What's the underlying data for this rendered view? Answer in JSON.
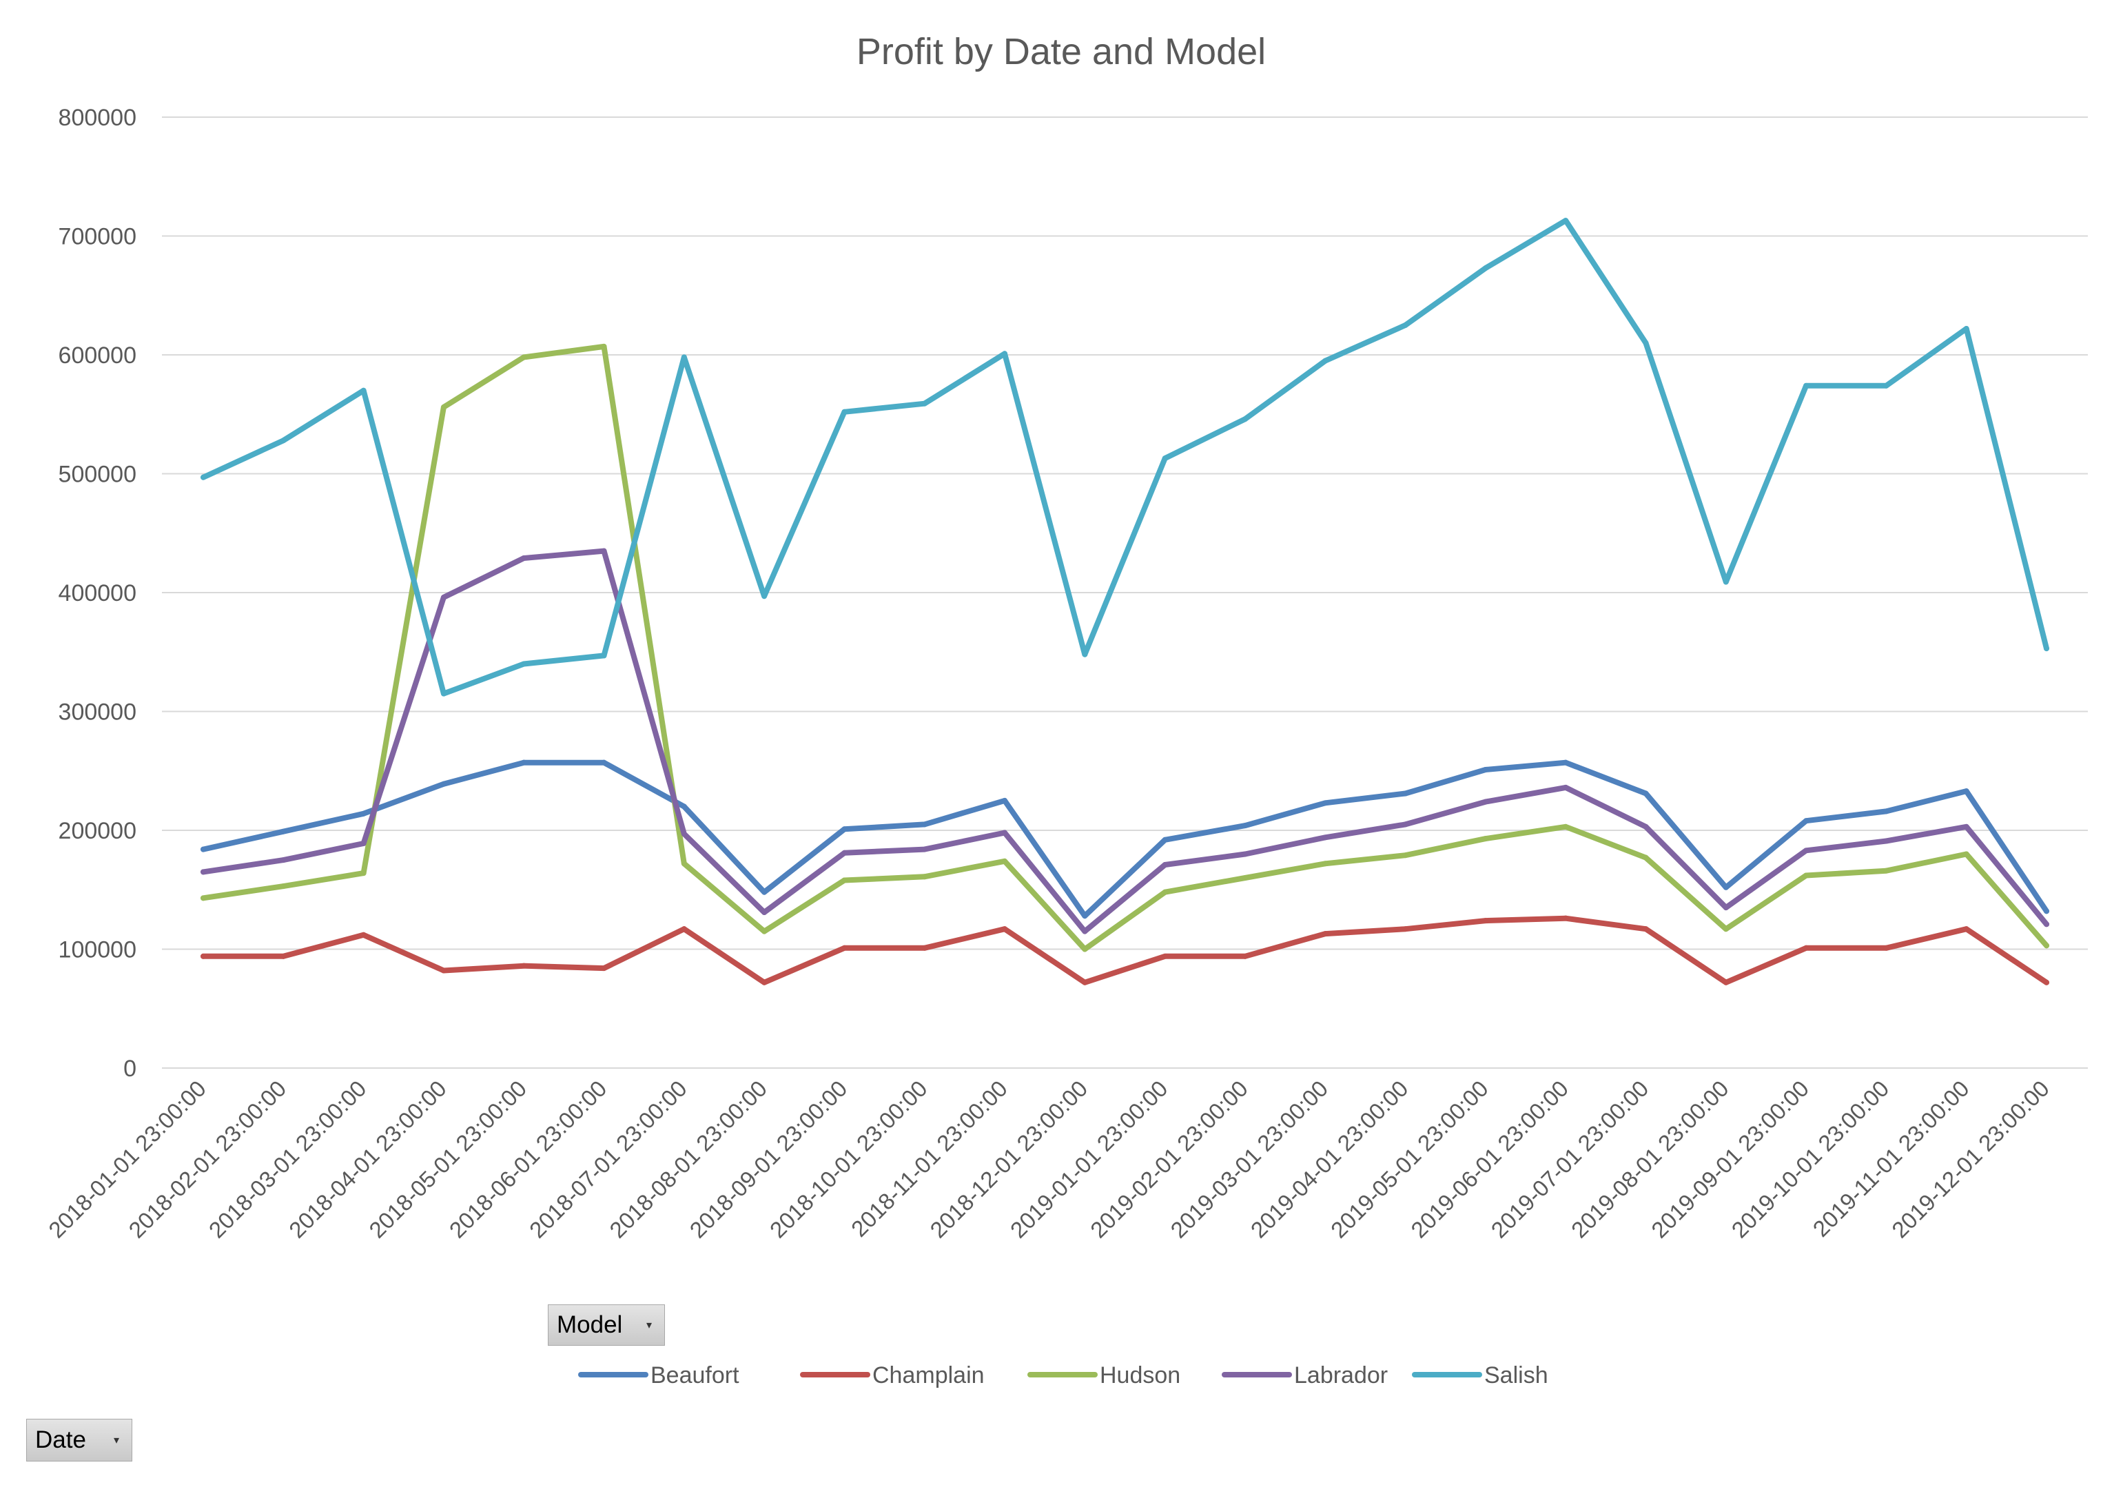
{
  "chart_data": {
    "type": "line",
    "title": "Profit by Date and Model",
    "xlabel": "",
    "ylabel": "",
    "ylim": [
      0,
      800000
    ],
    "yticks": [
      "0",
      "100000",
      "200000",
      "300000",
      "400000",
      "500000",
      "600000",
      "700000",
      "800000"
    ],
    "grid": true,
    "legend_position": "bottom",
    "categories": [
      "2018-01-01 23:00:00",
      "2018-02-01 23:00:00",
      "2018-03-01 23:00:00",
      "2018-04-01 23:00:00",
      "2018-05-01 23:00:00",
      "2018-06-01 23:00:00",
      "2018-07-01 23:00:00",
      "2018-08-01 23:00:00",
      "2018-09-01 23:00:00",
      "2018-10-01 23:00:00",
      "2018-11-01 23:00:00",
      "2018-12-01 23:00:00",
      "2019-01-01 23:00:00",
      "2019-02-01 23:00:00",
      "2019-03-01 23:00:00",
      "2019-04-01 23:00:00",
      "2019-05-01 23:00:00",
      "2019-06-01 23:00:00",
      "2019-07-01 23:00:00",
      "2019-08-01 23:00:00",
      "2019-09-01 23:00:00",
      "2019-10-01 23:00:00",
      "2019-11-01 23:00:00",
      "2019-12-01 23:00:00"
    ],
    "series": [
      {
        "name": "Beaufort",
        "color": "#4f81bd",
        "values": [
          184000,
          199000,
          214000,
          239000,
          257000,
          257000,
          220000,
          148000,
          201000,
          205000,
          225000,
          128000,
          192000,
          204000,
          223000,
          231000,
          251000,
          257000,
          231000,
          152000,
          208000,
          216000,
          233000,
          132000
        ]
      },
      {
        "name": "Champlain",
        "color": "#c0504d",
        "values": [
          94000,
          94000,
          112000,
          82000,
          86000,
          84000,
          117000,
          72000,
          101000,
          101000,
          117000,
          72000,
          94000,
          94000,
          113000,
          117000,
          124000,
          126000,
          117000,
          72000,
          101000,
          101000,
          117000,
          72000
        ]
      },
      {
        "name": "Hudson",
        "color": "#9bbb59",
        "values": [
          143000,
          153000,
          164000,
          556000,
          598000,
          607000,
          172000,
          115000,
          158000,
          161000,
          174000,
          100000,
          148000,
          160000,
          172000,
          179000,
          193000,
          203000,
          177000,
          117000,
          162000,
          166000,
          180000,
          103000
        ]
      },
      {
        "name": "Labrador",
        "color": "#8064a2",
        "values": [
          165000,
          175000,
          189000,
          396000,
          429000,
          435000,
          197000,
          131000,
          181000,
          184000,
          198000,
          115000,
          171000,
          180000,
          194000,
          205000,
          224000,
          236000,
          203000,
          135000,
          183000,
          191000,
          203000,
          121000
        ]
      },
      {
        "name": "Salish",
        "color": "#4bacc6",
        "values": [
          497000,
          528000,
          570000,
          315000,
          340000,
          347000,
          598000,
          397000,
          552000,
          559000,
          601000,
          348000,
          513000,
          546000,
          595000,
          625000,
          673000,
          713000,
          610000,
          409000,
          574000,
          574000,
          622000,
          353000
        ]
      }
    ]
  },
  "filters": {
    "model_label": "Model",
    "date_label": "Date"
  }
}
